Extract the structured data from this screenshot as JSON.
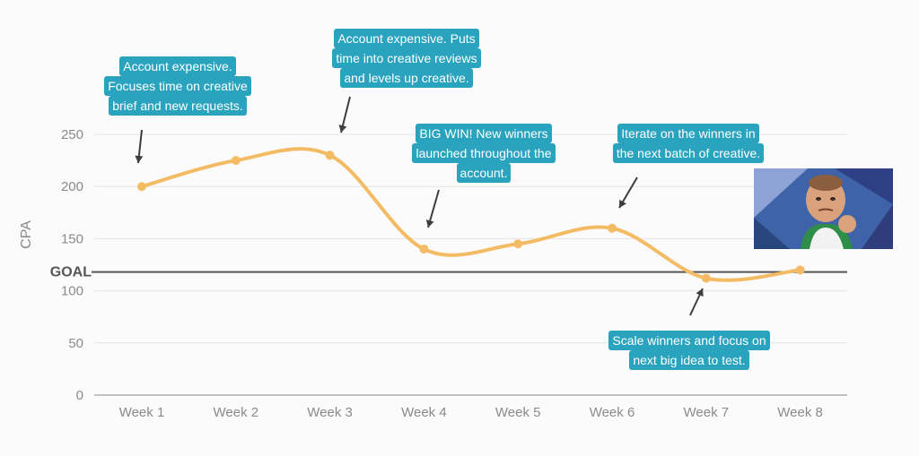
{
  "chart_data": {
    "type": "line",
    "categories": [
      "Week 1",
      "Week 2",
      "Week 3",
      "Week 4",
      "Week 5",
      "Week 6",
      "Week 7",
      "Week 8"
    ],
    "series": [
      {
        "name": "CPA",
        "values": [
          200,
          225,
          230,
          140,
          145,
          160,
          112,
          120
        ]
      }
    ],
    "ylabel": "CPA",
    "xlabel": "",
    "ylim": [
      0,
      250
    ],
    "yticks": [
      0,
      50,
      100,
      150,
      200,
      250
    ],
    "grid": true,
    "goal": {
      "label": "GOAL",
      "value": 118
    },
    "colors": {
      "line": "#f3bc64",
      "goal": "#555555",
      "grid": "#e4e4e4",
      "note_bg": "#2aa3bf"
    },
    "annotations": [
      {
        "week": "Week 1",
        "lines": [
          "Account expensive.",
          "Focuses time on creative",
          "brief and new requests."
        ]
      },
      {
        "week": "Week 3",
        "lines": [
          "Account expensive. Puts",
          "time into creative reviews",
          "and levels up creative."
        ]
      },
      {
        "week": "Week 4",
        "lines": [
          "BIG WIN! New winners",
          "launched throughout the",
          "account."
        ]
      },
      {
        "week": "Week 6",
        "lines": [
          "Iterate on the winners in",
          "the next batch of creative."
        ]
      },
      {
        "week": "Week 7",
        "lines": [
          "Scale winners and focus on",
          "next big idea to test."
        ]
      }
    ]
  },
  "image": {
    "icon": "success-kid-meme-icon"
  }
}
